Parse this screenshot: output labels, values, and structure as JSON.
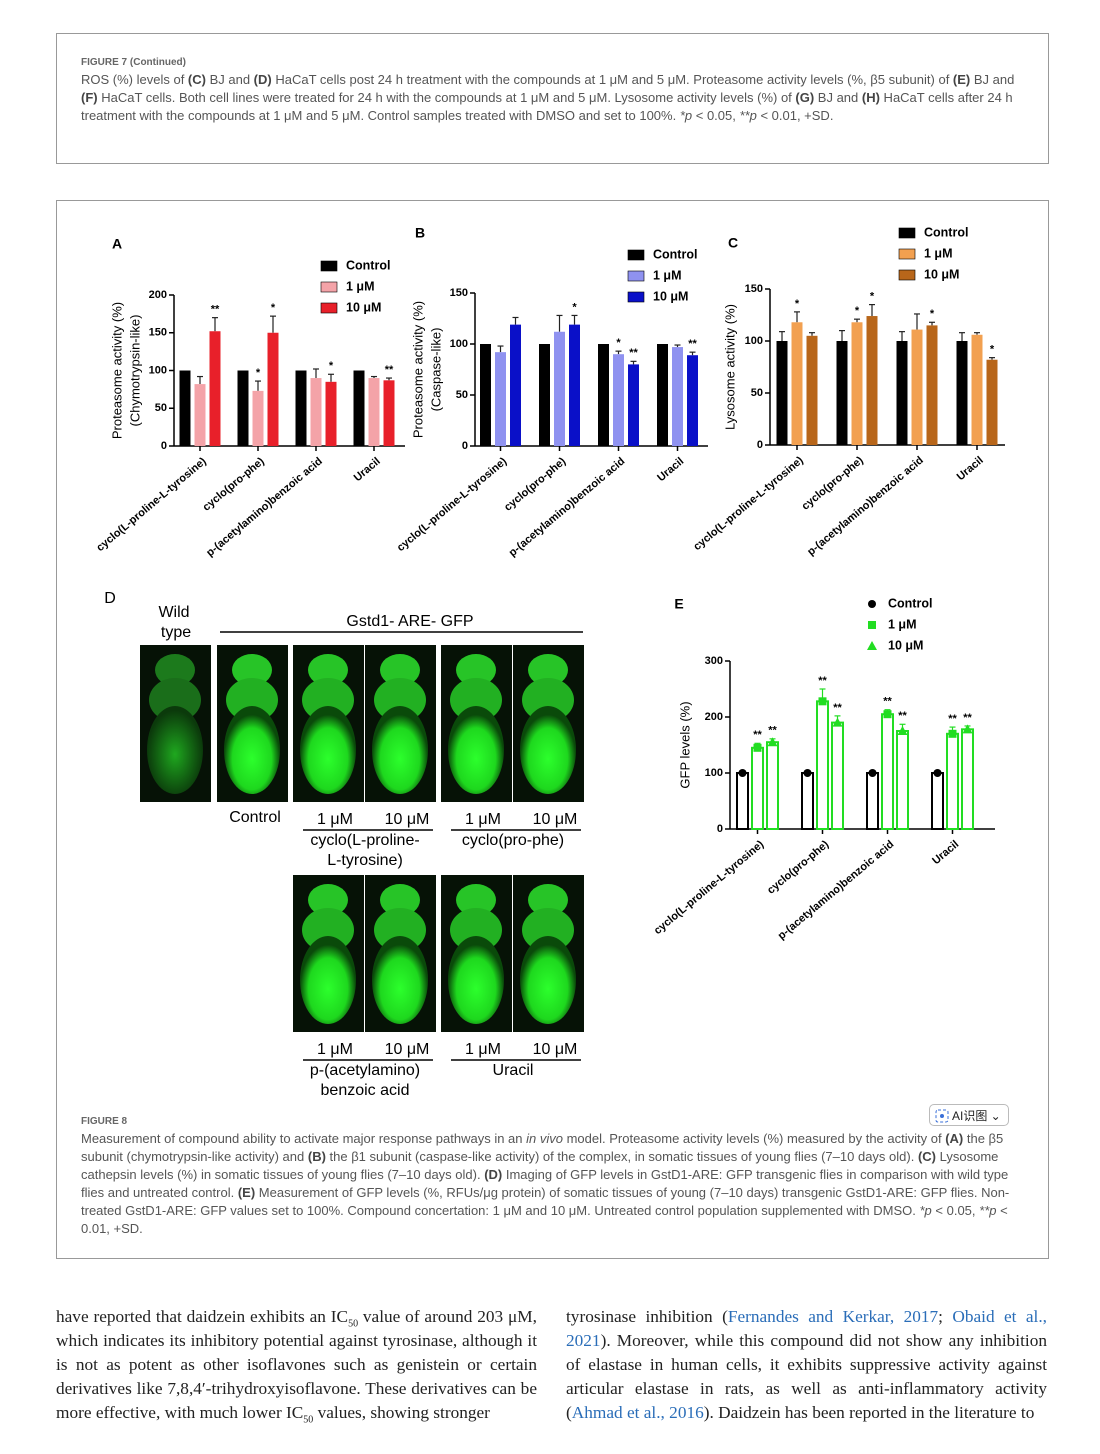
{
  "figure7": {
    "label": "FIGURE 7 (Continued)",
    "caption": [
      "ROS (%) levels of ",
      "(C)",
      " BJ and ",
      "(D)",
      " HaCaT cells post 24 h treatment with the compounds at 1 μM and 5 μM. Proteasome activity levels (%, β5 subunit) of ",
      "(E)",
      " BJ and ",
      "(F)",
      " HaCaT cells. Both cell lines were treated for 24 h with the compounds at 1 μM and 5 μM. Lysosome activity levels (%) of ",
      "(G)",
      " BJ and ",
      "(H)",
      " HaCaT cells after 24 h treatment with the compounds at 1 μM and 5 μM. Control samples treated with DMSO and set to 100%. ",
      "*p",
      " < 0.05, ",
      "**p",
      " < 0.01, +SD."
    ]
  },
  "chart_data": [
    {
      "type": "bar",
      "title": "A",
      "ylabel": [
        "Proteasome activity (%)",
        "(Chymotrypsin-like)"
      ],
      "categories": [
        "cyclo(L-proline-L-tyrosine)",
        "cyclo(pro-phe)",
        "p-(acetylamino)benzoic acid",
        "Uracil"
      ],
      "ylim": [
        0,
        200
      ],
      "yticks": [
        0,
        50,
        100,
        150,
        200
      ],
      "legend": "upper right",
      "series": [
        {
          "name": "Control",
          "color": "#000000",
          "values": [
            100,
            100,
            100,
            100
          ]
        },
        {
          "name": "1 μM",
          "color": "#f4a3a8",
          "values": [
            82,
            73,
            90,
            90
          ],
          "errors": [
            10,
            13,
            12,
            2
          ],
          "significance": [
            null,
            "*",
            null,
            null
          ]
        },
        {
          "name": "10 μM",
          "color": "#e8202a",
          "values": [
            152,
            150,
            85,
            87
          ],
          "errors": [
            18,
            22,
            10,
            3
          ],
          "significance": [
            "**",
            "*",
            "*",
            "**"
          ]
        }
      ]
    },
    {
      "type": "bar",
      "title": "B",
      "ylabel": [
        "Proteasome activity (%)",
        "(Caspase-like)"
      ],
      "categories": [
        "cyclo(L-proline-L-tyrosine)",
        "cyclo(pro-phe)",
        "p-(acetylamino)benzoic acid",
        "Uracil"
      ],
      "ylim": [
        0,
        150
      ],
      "yticks": [
        0,
        50,
        100,
        150
      ],
      "legend": "upper right",
      "series": [
        {
          "name": "Control",
          "color": "#000000",
          "values": [
            100,
            100,
            100,
            100
          ]
        },
        {
          "name": "1 μM",
          "color": "#8f92f0",
          "values": [
            92,
            112,
            90,
            97
          ],
          "errors": [
            6,
            16,
            3,
            2
          ],
          "significance": [
            null,
            null,
            "*",
            null
          ]
        },
        {
          "name": "10 μM",
          "color": "#0a10c8",
          "values": [
            119,
            119,
            80,
            89
          ],
          "errors": [
            7,
            9,
            3,
            3
          ],
          "significance": [
            null,
            "*",
            "**",
            "**"
          ]
        }
      ]
    },
    {
      "type": "bar",
      "title": "C",
      "ylabel": [
        "Lysosome activity (%)"
      ],
      "categories": [
        "cyclo(L-proline-L-tyrosine)",
        "cyclo(pro-phe)",
        "p-(acetylamino)benzoic acid",
        "Uracil"
      ],
      "ylim": [
        0,
        150
      ],
      "yticks": [
        0,
        50,
        100,
        150
      ],
      "legend": "upper right",
      "series": [
        {
          "name": "Control",
          "color": "#000000",
          "values": [
            100,
            100,
            100,
            100
          ],
          "errors": [
            9,
            10,
            9,
            8
          ]
        },
        {
          "name": "1 μM",
          "color": "#f2a050",
          "values": [
            118,
            118,
            111,
            106
          ],
          "errors": [
            10,
            3,
            15,
            2
          ],
          "significance": [
            "*",
            "*",
            null,
            null
          ]
        },
        {
          "name": "10 μM",
          "color": "#b8661a",
          "values": [
            105,
            124,
            115,
            82
          ],
          "errors": [
            3,
            11,
            3,
            2
          ],
          "significance": [
            null,
            "*",
            "*",
            "*"
          ]
        }
      ]
    },
    {
      "type": "bar",
      "title": "E",
      "ylabel": [
        "GFP levels (%)"
      ],
      "categories": [
        "cyclo(L-proline-L-tyrosine)",
        "cyclo(pro-phe)",
        "p-(acetylamino)benzoic acid",
        "Uracil"
      ],
      "ylim": [
        0,
        300
      ],
      "yticks": [
        0,
        100,
        200,
        300
      ],
      "legend": "upper right",
      "bar_fill": false,
      "series": [
        {
          "name": "Control",
          "color": "#000000",
          "marker": "circle",
          "values": [
            100,
            100,
            100,
            100
          ],
          "errors": [
            4,
            4,
            4,
            4
          ]
        },
        {
          "name": "1 μM",
          "color": "#22dd22",
          "marker": "square",
          "values": [
            145,
            228,
            205,
            170
          ],
          "errors": [
            8,
            22,
            8,
            12
          ],
          "significance": [
            "**",
            "**",
            "**",
            "**"
          ]
        },
        {
          "name": "10 μM",
          "color": "#22dd22",
          "marker": "triangle",
          "values": [
            155,
            190,
            175,
            178
          ],
          "errors": [
            6,
            12,
            12,
            6
          ],
          "significance": [
            "**",
            "**",
            "**",
            "**"
          ]
        }
      ]
    }
  ],
  "panel_d": {
    "letter": "D",
    "wild_type": [
      "Wild",
      "type"
    ],
    "group_label": "Gstd1- ARE- GFP",
    "control": "Control",
    "groups": [
      {
        "doses": [
          "1 μM",
          "10 μM"
        ],
        "name": [
          "cyclo(L-proline-",
          "L-tyrosine)"
        ]
      },
      {
        "doses": [
          "1 μM",
          "10 μM"
        ],
        "name": [
          "cyclo(pro-phe)"
        ]
      },
      {
        "doses": [
          "1 μM",
          "10 μM"
        ],
        "name": [
          "p-(acetylamino)",
          "benzoic acid"
        ]
      },
      {
        "doses": [
          "1 μM",
          "10 μM"
        ],
        "name": [
          "Uracil"
        ]
      }
    ]
  },
  "figure8": {
    "label": "FIGURE 8",
    "button": "AI识图",
    "caption": [
      "Measurement of compound ability to activate major response pathways in an ",
      "in vivo",
      " model. Proteasome activity levels (%) measured by the activity of ",
      "(A)",
      " the β5 subunit (chymotrypsin-like activity) and ",
      "(B)",
      " the β1 subunit (caspase-like activity) of the complex, in somatic tissues of young flies (7–10 days old). ",
      "(C)",
      " Lysosome cathepsin levels (%) in somatic tissues of young flies (7–10 days old). ",
      "(D)",
      " Imaging of GFP levels in GstD1-ARE: GFP transgenic flies in comparison with wild type flies and untreated control. ",
      "(E)",
      " Measurement of GFP levels (%, RFUs/μg protein) of somatic tissues of young (7–10 days) transgenic GstD1-ARE: GFP flies. Non-treated GstD1-ARE: GFP values set to 100%. Compound concertation: 1 μM and 10 μM. Untreated control population supplemented with DMSO. ",
      "*p",
      " < 0.05, ",
      "**p",
      " < 0.01, +SD."
    ]
  },
  "body": {
    "left": [
      "have reported that daidzein exhibits an IC",
      "50",
      " value of around 203 μM, which indicates its inhibitory potential against tyrosinase, although it is not as potent as other isoflavones such as genistein or certain derivatives like 7,8,4′-trihydroxyisoflavone. These derivatives can be more effective, with much lower IC",
      "50",
      " values, showing stronger"
    ],
    "right": [
      "tyrosinase inhibition (",
      "Fernandes and Kerkar, 2017",
      "; ",
      "Obaid et al., 2021",
      "). Moreover, while this compound did not show any inhibition of elastase in human cells, it exhibits suppressive activity against articular elastase in rats, as well as anti-inflammatory activity (",
      "Ahmad et al., 2016",
      "). Daidzein has been reported in the literature to"
    ]
  }
}
